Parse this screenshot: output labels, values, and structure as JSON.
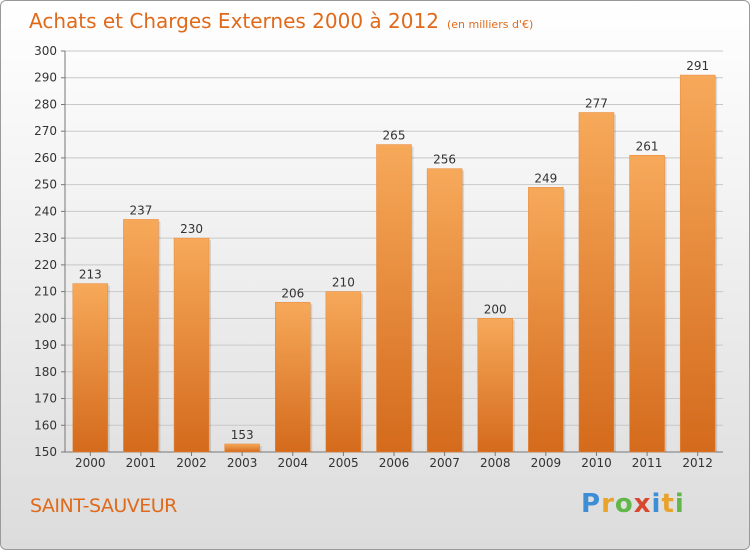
{
  "title": "Achats et Charges Externes 2000 à 2012",
  "subtitle": "(en milliers d'€)",
  "location": "SAINT-SAUVEUR",
  "brand": {
    "text": "Proxiti",
    "letters": [
      {
        "ch": "P",
        "color": "#3c8fd6"
      },
      {
        "ch": "r",
        "color": "#e9a22a"
      },
      {
        "ch": "o",
        "color": "#62b64a"
      },
      {
        "ch": "x",
        "color": "#d9472f"
      },
      {
        "ch": "i",
        "color": "#3c8fd6"
      },
      {
        "ch": "t",
        "color": "#e9a22a"
      },
      {
        "ch": "i",
        "color": "#62b64a"
      }
    ]
  },
  "colors": {
    "accent": "#e06a1a",
    "bar_top": "#f7a95a",
    "bar_bottom": "#d46a1c"
  },
  "chart_data": {
    "type": "bar",
    "title": "Achats et Charges Externes 2000 à 2012",
    "subtitle": "(en milliers d'€)",
    "categories": [
      "2000",
      "2001",
      "2002",
      "2003",
      "2004",
      "2005",
      "2006",
      "2007",
      "2008",
      "2009",
      "2010",
      "2011",
      "2012"
    ],
    "values": [
      213,
      237,
      230,
      153,
      206,
      210,
      265,
      256,
      200,
      249,
      277,
      261,
      291
    ],
    "ylim": [
      150,
      300
    ],
    "yticks": [
      150,
      160,
      170,
      180,
      190,
      200,
      210,
      220,
      230,
      240,
      250,
      260,
      270,
      280,
      290,
      300
    ],
    "grid": true,
    "legend": "none",
    "data_labels": true
  }
}
